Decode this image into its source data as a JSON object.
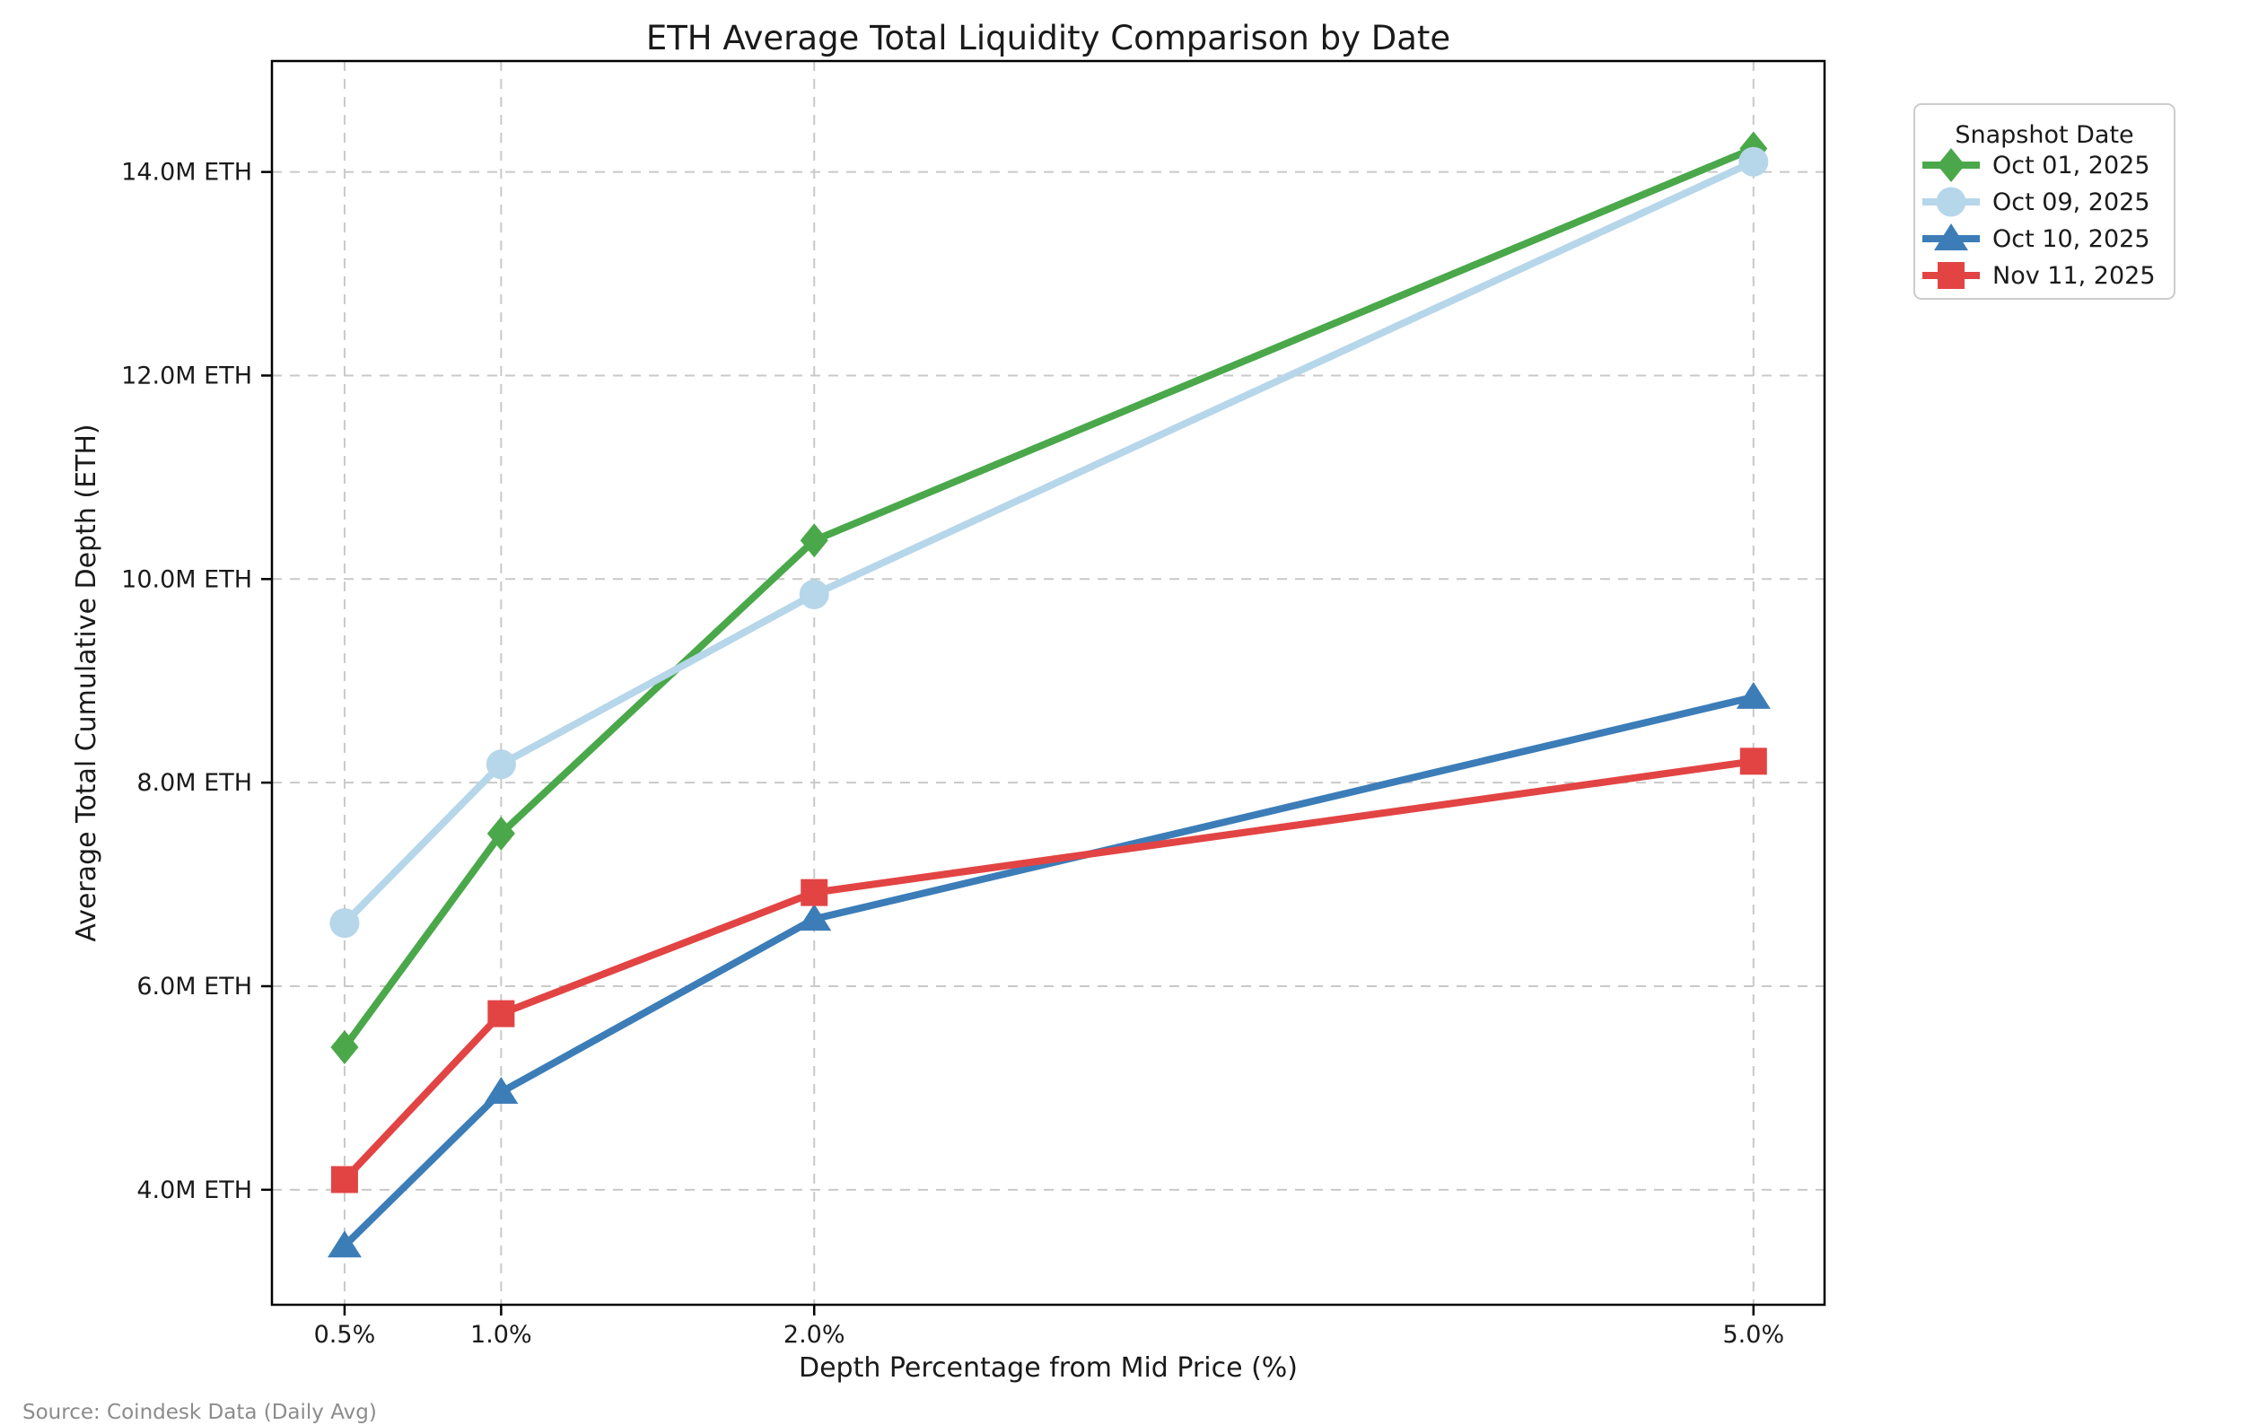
{
  "source": "Source: Coindesk Data (Daily Avg)",
  "chart_data": {
    "type": "line",
    "title": "ETH Average Total Liquidity Comparison by Date",
    "xlabel": "Depth Percentage from Mid Price (%)",
    "ylabel": "Average Total Cumulative Depth (ETH)",
    "x": [
      0.5,
      1.0,
      2.0,
      5.0
    ],
    "x_tick_labels": [
      "0.5%",
      "1.0%",
      "2.0%",
      "5.0%"
    ],
    "y_ticks": [
      4,
      6,
      8,
      10,
      12,
      14
    ],
    "y_tick_labels": [
      "4.0M ETH",
      "6.0M ETH",
      "8.0M ETH",
      "10.0M ETH",
      "12.0M ETH",
      "14.0M ETH"
    ],
    "xlim": [
      0.268,
      5.227
    ],
    "ylim": [
      2.87,
      15.09
    ],
    "grid": true,
    "legend": {
      "title": "Snapshot Date",
      "position": "outside-upper-right"
    },
    "series": [
      {
        "name": "Oct 01, 2025",
        "color": "#4aa84a",
        "marker": "diamond",
        "values": [
          5.4,
          7.5,
          10.38,
          14.23
        ]
      },
      {
        "name": "Oct 09, 2025",
        "color": "#b6d6ea",
        "marker": "circle",
        "values": [
          6.62,
          8.18,
          9.85,
          14.1
        ]
      },
      {
        "name": "Oct 10, 2025",
        "color": "#3c7db8",
        "marker": "triangle",
        "values": [
          3.45,
          4.96,
          6.66,
          8.84
        ]
      },
      {
        "name": "Nov 11, 2025",
        "color": "#e24444",
        "marker": "square",
        "values": [
          4.1,
          5.73,
          6.92,
          8.21
        ]
      }
    ]
  }
}
